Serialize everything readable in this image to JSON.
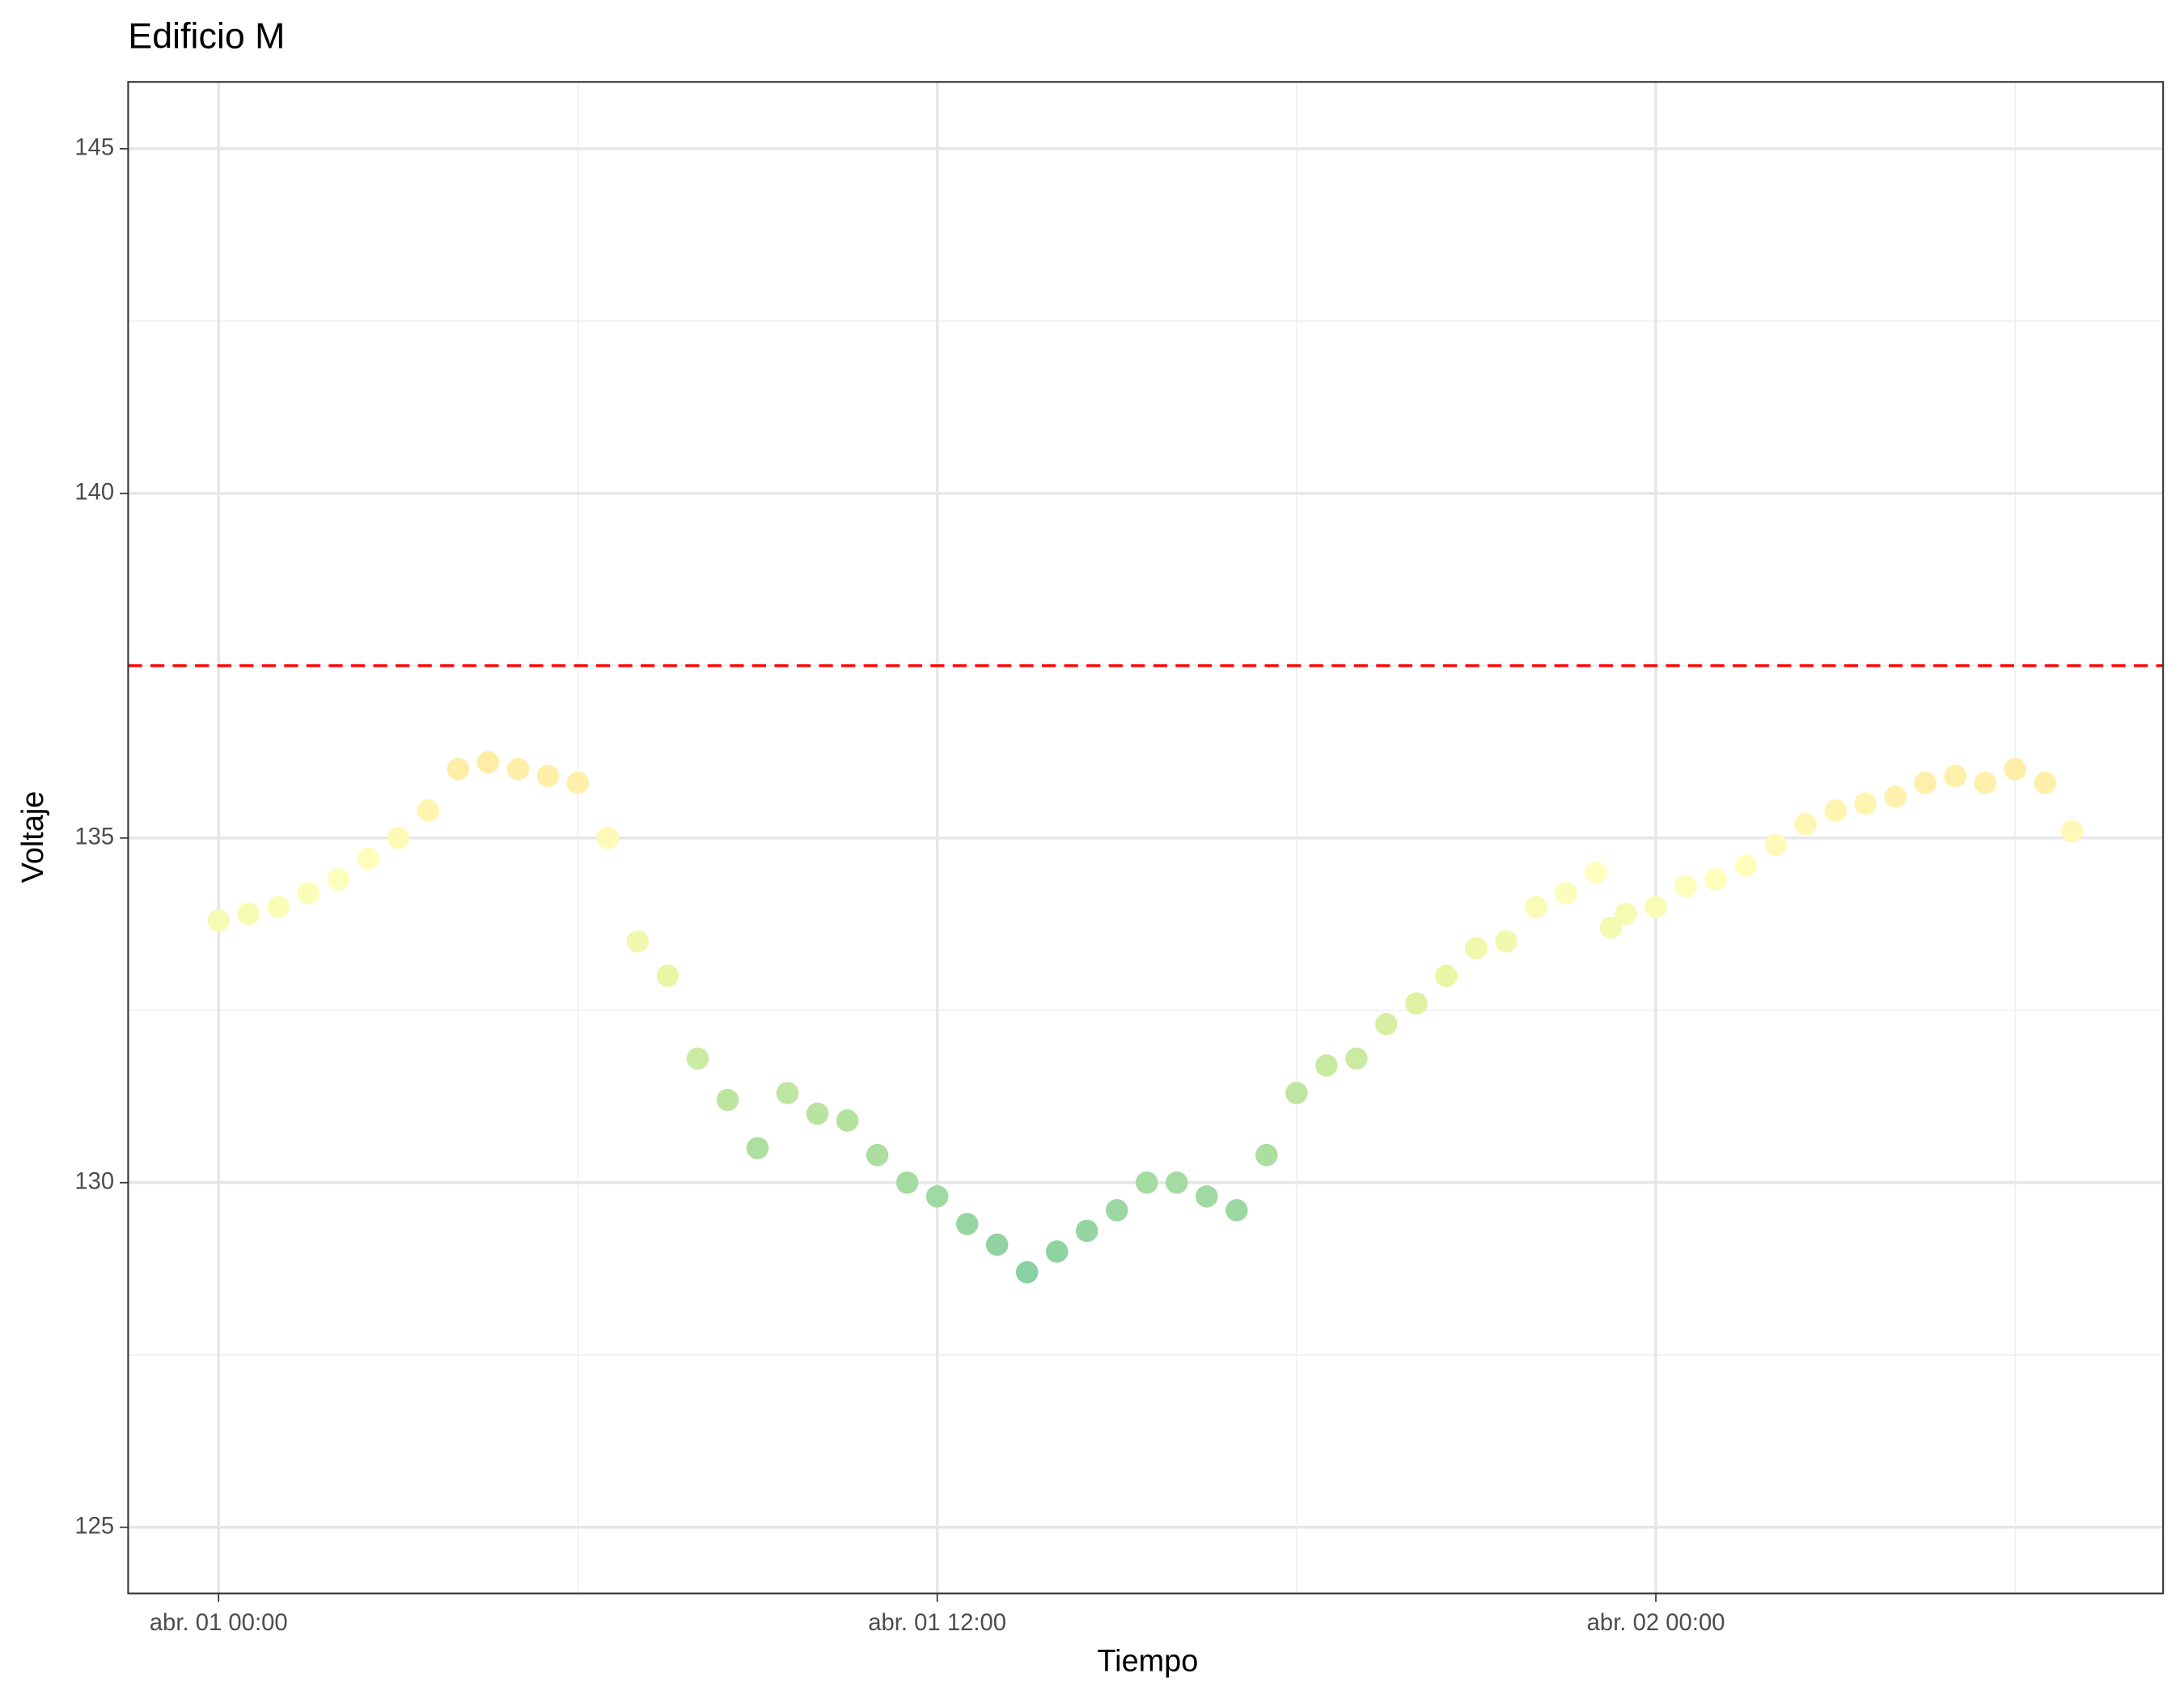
{
  "chart_data": {
    "type": "scatter",
    "title": "Edificio M",
    "xlabel": "Tiempo",
    "ylabel": "Voltaje",
    "x": [
      0,
      0.5,
      1,
      1.5,
      2,
      2.5,
      3,
      3.5,
      4,
      4.5,
      5,
      5.5,
      6,
      6.5,
      7,
      7.5,
      8,
      8.5,
      9,
      9.5,
      10,
      10.5,
      11,
      11.5,
      12,
      12.5,
      13,
      13.5,
      14,
      14.5,
      15,
      15.5,
      16,
      16.5,
      17,
      17.5,
      18,
      18.5,
      19,
      19.5,
      20,
      20.5,
      21,
      21.5,
      22,
      22.5,
      23,
      23.25,
      23.5,
      24,
      24.5,
      25,
      25.5,
      26,
      26.5,
      27,
      27.5,
      28,
      28.5,
      29,
      29.5,
      30,
      30.5,
      30.95
    ],
    "values": [
      133.8,
      133.9,
      134.0,
      134.2,
      134.4,
      134.7,
      135.0,
      135.4,
      136.0,
      136.1,
      136.0,
      135.9,
      135.8,
      135.0,
      133.5,
      133.0,
      131.8,
      131.2,
      130.5,
      131.3,
      131.0,
      130.9,
      130.4,
      130.0,
      129.8,
      129.4,
      129.1,
      128.7,
      129.0,
      129.3,
      129.6,
      130.0,
      130.0,
      129.8,
      129.6,
      130.4,
      131.3,
      131.7,
      131.8,
      132.3,
      132.6,
      133.0,
      133.4,
      133.5,
      134.0,
      134.2,
      134.5,
      133.7,
      133.9,
      134.0,
      134.3,
      134.4,
      134.6,
      134.9,
      135.2,
      135.4,
      135.5,
      135.6,
      135.8,
      135.9,
      135.8,
      136.0,
      135.8,
      135.1
    ],
    "color_scale": {
      "domain": [
        128.2,
        131,
        133,
        134.5,
        136.5
      ],
      "colors": [
        "#7fcca2",
        "#b8e3a0",
        "#e9f6a4",
        "#ffffbf",
        "#fee8a0"
      ]
    },
    "xlim": [
      -1.51,
      32.47
    ],
    "xticks": [
      {
        "value": 0,
        "label": "abr. 01 00:00"
      },
      {
        "value": 12,
        "label": "abr. 01 12:00"
      },
      {
        "value": 24,
        "label": "abr. 02 00:00"
      }
    ],
    "xminor": [
      6,
      18,
      30
    ],
    "ylim": [
      124.04,
      145.97
    ],
    "yticks": [
      125,
      130,
      135,
      140,
      145
    ],
    "yminor": [
      127.5,
      132.5,
      137.5,
      142.5
    ],
    "hline": {
      "value": 137.5,
      "color": "#ff0000"
    },
    "grid": true
  }
}
